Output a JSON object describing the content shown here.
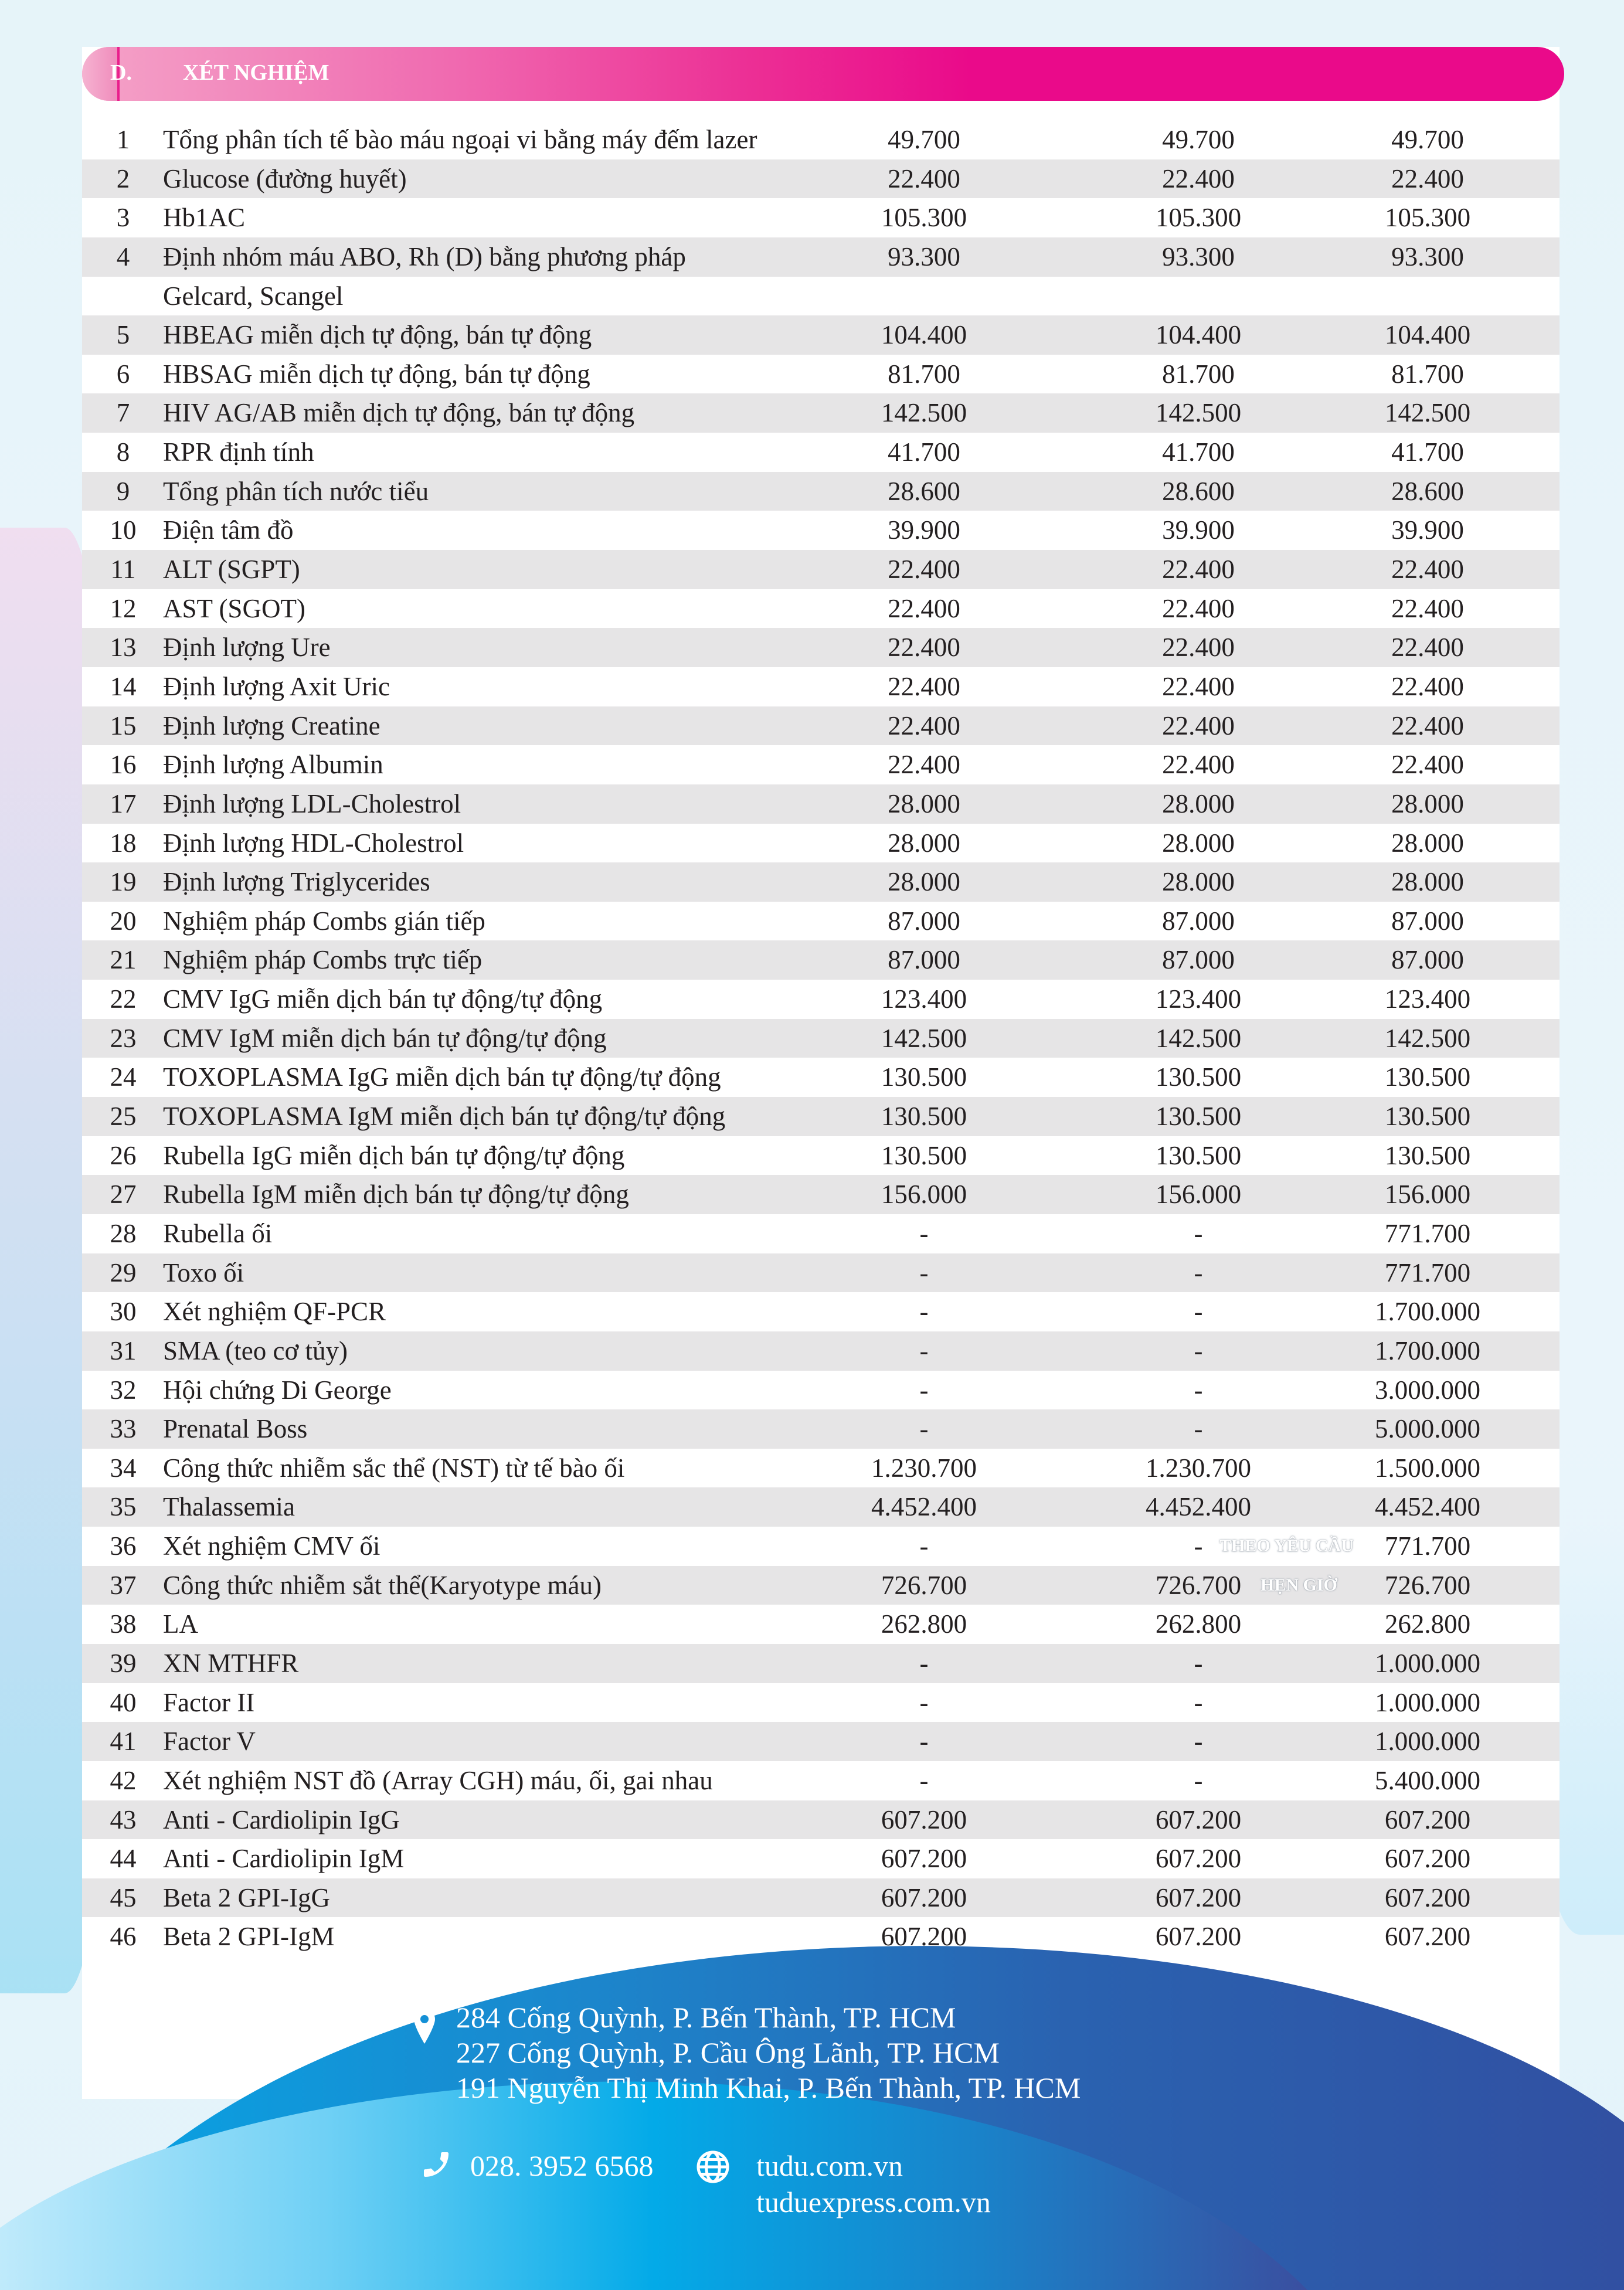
{
  "section": {
    "letter": "D.",
    "title": "XÉT NGHIỆM"
  },
  "colors": {
    "header_pink": "#ea0a8a",
    "row_stripe": "#e6e5e6",
    "footer_blue": "#1c86cc"
  },
  "rows": [
    [
      "1",
      "Tổng phân tích tế bào máu ngoại vi bằng máy đếm lazer",
      "49.700",
      "49.700",
      "49.700"
    ],
    [
      "2",
      "Glucose (đường huyết)",
      "22.400",
      "22.400",
      "22.400"
    ],
    [
      "3",
      "Hb1AC",
      "105.300",
      "105.300",
      "105.300"
    ],
    [
      "4",
      "Định nhóm máu ABO, Rh (D) bằng phương pháp",
      "93.300",
      "93.300",
      "93.300",
      "Gelcard, Scangel"
    ],
    [
      "5",
      "HBEAG miễn dịch tự động, bán tự động",
      "104.400",
      "104.400",
      "104.400"
    ],
    [
      "6",
      "HBSAG miễn dịch tự động, bán tự động",
      "81.700",
      "81.700",
      "81.700"
    ],
    [
      "7",
      "HIV AG/AB miễn dịch tự động, bán tự động",
      "142.500",
      "142.500",
      "142.500"
    ],
    [
      "8",
      "RPR định tính",
      "41.700",
      "41.700",
      "41.700"
    ],
    [
      "9",
      "Tổng phân tích nước tiểu",
      "28.600",
      "28.600",
      "28.600"
    ],
    [
      "10",
      "Điện tâm đồ",
      "39.900",
      "39.900",
      "39.900"
    ],
    [
      "11",
      "ALT (SGPT)",
      "22.400",
      "22.400",
      "22.400"
    ],
    [
      "12",
      "AST (SGOT)",
      "22.400",
      "22.400",
      "22.400"
    ],
    [
      "13",
      "Định lượng Ure",
      "22.400",
      "22.400",
      "22.400"
    ],
    [
      "14",
      "Định lượng Axit Uric",
      "22.400",
      "22.400",
      "22.400"
    ],
    [
      "15",
      "Định lượng Creatine",
      "22.400",
      "22.400",
      "22.400"
    ],
    [
      "16",
      "Định lượng Albumin",
      "22.400",
      "22.400",
      "22.400"
    ],
    [
      "17",
      "Định lượng LDL-Cholestrol",
      "28.000",
      "28.000",
      "28.000"
    ],
    [
      "18",
      "Định lượng HDL-Cholestrol",
      "28.000",
      "28.000",
      "28.000"
    ],
    [
      "19",
      "Định lượng Triglycerides",
      "28.000",
      "28.000",
      "28.000"
    ],
    [
      "20",
      "Nghiệm pháp Combs gián tiếp",
      "87.000",
      "87.000",
      "87.000"
    ],
    [
      "21",
      "Nghiệm pháp Combs trực tiếp",
      "87.000",
      "87.000",
      "87.000"
    ],
    [
      "22",
      "CMV IgG miễn dịch bán tự động/tự động",
      "123.400",
      "123.400",
      "123.400"
    ],
    [
      "23",
      "CMV IgM miễn dịch bán tự động/tự động",
      "142.500",
      "142.500",
      "142.500"
    ],
    [
      "24",
      "TOXOPLASMA IgG miễn dịch bán tự động/tự động",
      "130.500",
      "130.500",
      "130.500"
    ],
    [
      "25",
      "TOXOPLASMA IgM miễn dịch bán tự động/tự động",
      "130.500",
      "130.500",
      "130.500"
    ],
    [
      "26",
      "Rubella IgG miễn dịch bán tự động/tự động",
      "130.500",
      "130.500",
      "130.500"
    ],
    [
      "27",
      "Rubella IgM miễn dịch bán tự động/tự động",
      "156.000",
      "156.000",
      "156.000"
    ],
    [
      "28",
      "Rubella ối",
      "-",
      "-",
      "771.700"
    ],
    [
      "29",
      "Toxo ối",
      "-",
      "-",
      "771.700"
    ],
    [
      "30",
      "Xét nghiệm QF-PCR",
      "-",
      "-",
      "1.700.000"
    ],
    [
      "31",
      "SMA (teo cơ tủy)",
      "-",
      "-",
      "1.700.000"
    ],
    [
      "32",
      "Hội chứng Di George",
      "-",
      "-",
      "3.000.000"
    ],
    [
      "33",
      "Prenatal Boss",
      "-",
      "-",
      "5.000.000"
    ],
    [
      "34",
      "Công thức nhiễm sắc thể (NST) từ tế bào ối",
      "1.230.700",
      "1.230.700",
      "1.500.000"
    ],
    [
      "35",
      "Thalassemia",
      "4.452.400",
      "4.452.400",
      "4.452.400"
    ],
    [
      "36",
      "Xét nghiệm CMV ối",
      "-",
      "-",
      "771.700"
    ],
    [
      "37",
      "Công thức nhiễm sắt thể(Karyotype máu)",
      "726.700",
      "726.700",
      "726.700"
    ],
    [
      "38",
      "LA",
      "262.800",
      "262.800",
      "262.800"
    ],
    [
      "39",
      "XN MTHFR",
      "-",
      "-",
      "1.000.000"
    ],
    [
      "40",
      "Factor II",
      "-",
      "-",
      "1.000.000"
    ],
    [
      "41",
      "Factor V",
      "-",
      "-",
      "1.000.000"
    ],
    [
      "42",
      "Xét nghiệm NST đồ (Array CGH) máu, ối, gai nhau",
      "-",
      "-",
      "5.400.000"
    ],
    [
      "43",
      "Anti - Cardiolipin IgG",
      "607.200",
      "607.200",
      "607.200"
    ],
    [
      "44",
      "Anti - Cardiolipin IgM",
      "607.200",
      "607.200",
      "607.200"
    ],
    [
      "45",
      "Beta 2 GPI-IgG",
      "607.200",
      "607.200",
      "607.200"
    ],
    [
      "46",
      "Beta 2 GPI-IgM",
      "607.200",
      "607.200",
      "607.200"
    ]
  ],
  "watermark": {
    "line1": "THEO YÊU CẦU",
    "line2": "HẸN GIỜ"
  },
  "footer": {
    "addresses": [
      "284 Cống Quỳnh, P. Bến Thành, TP. HCM",
      "227 Cống Quỳnh, P. Cầu Ông Lãnh, TP. HCM",
      "191 Nguyễn Thị Minh Khai, P. Bến Thành, TP. HCM"
    ],
    "phone": "028. 3952 6568",
    "websites": [
      "tudu.com.vn",
      "tuduexpress.com.vn"
    ],
    "icons": {
      "address": "map-pin-icon",
      "phone": "phone-icon",
      "web": "globe-icon"
    }
  }
}
